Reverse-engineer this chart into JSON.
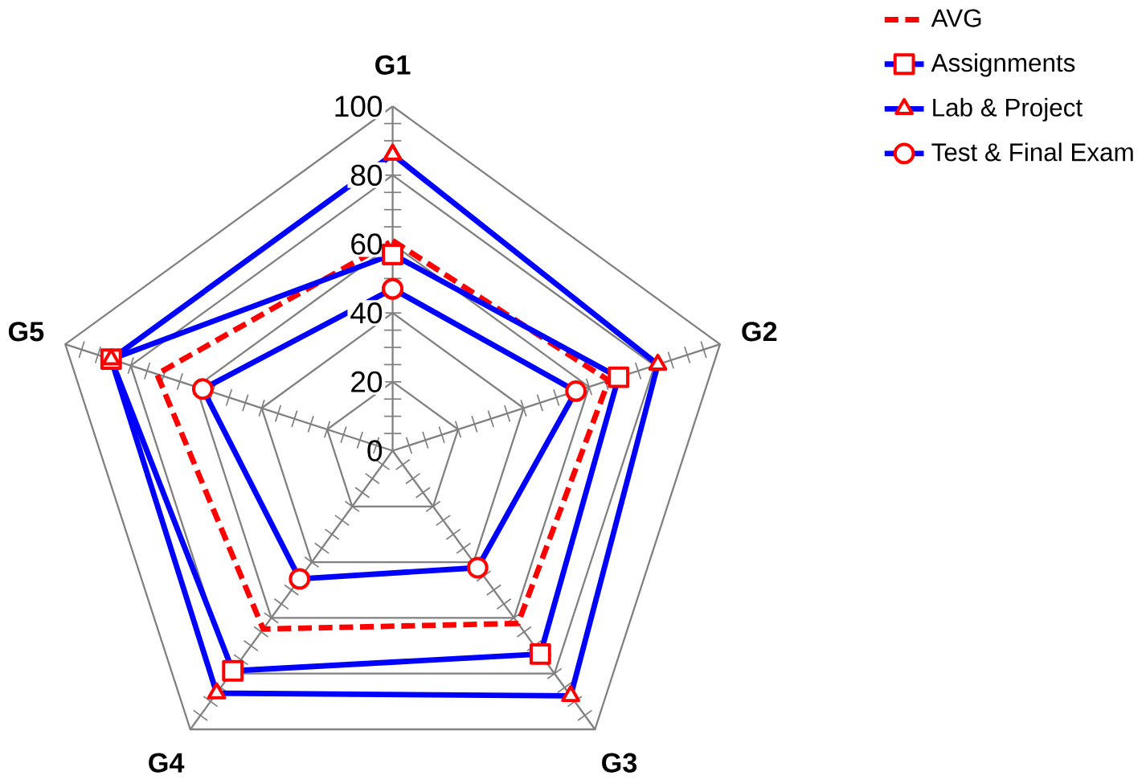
{
  "chart_data": {
    "type": "radar",
    "categories": [
      "G1",
      "G2",
      "G3",
      "G4",
      "G5"
    ],
    "ylim": [
      0,
      100
    ],
    "yticks": [
      0,
      20,
      40,
      60,
      80,
      100
    ],
    "grid": true,
    "legend": "top right",
    "series": [
      {
        "name": "AVG",
        "color": "#ff0000",
        "line_style": "dashed",
        "marker": "none",
        "values": [
          61,
          66,
          62,
          64,
          72
        ]
      },
      {
        "name": "Assignments",
        "color": "#0000ff",
        "line_style": "solid",
        "marker": "square",
        "values": [
          57,
          69,
          73,
          79,
          86
        ]
      },
      {
        "name": "Lab & Project",
        "color": "#0000ff",
        "line_style": "solid",
        "marker": "triangle",
        "values": [
          86,
          81,
          88,
          87,
          86
        ]
      },
      {
        "name": "Test & Final Exam",
        "color": "#0000ff",
        "line_style": "solid",
        "marker": "circle",
        "values": [
          47,
          56,
          42,
          46,
          58
        ]
      }
    ]
  }
}
